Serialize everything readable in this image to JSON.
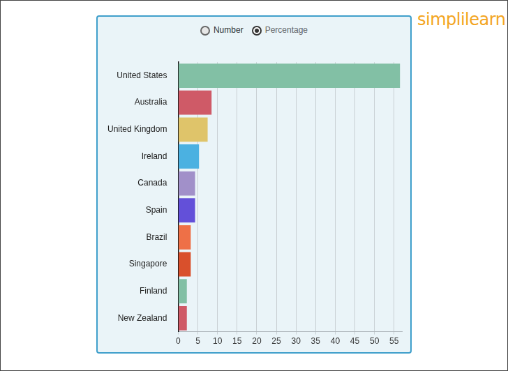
{
  "chart_data": {
    "type": "bar",
    "orientation": "horizontal",
    "annotations": [
      "Number",
      "Percentage",
      "simplilearn"
    ],
    "categories": [
      "United States",
      "Australia",
      "United Kingdom",
      "Ireland",
      "Canada",
      "Spain",
      "Brazil",
      "Singapore",
      "Finland",
      "New Zealand"
    ],
    "values": [
      56.5,
      8.5,
      7.5,
      5.3,
      4.3,
      4.3,
      3.2,
      3.2,
      2.2,
      2.2
    ],
    "colors": [
      "#82c0a5",
      "#cf5a67",
      "#dfc46a",
      "#4bb1e1",
      "#a190c9",
      "#6350d9",
      "#ee7047",
      "#d9502c",
      "#82c0a5",
      "#cf5a67"
    ],
    "xlim": [
      0,
      57
    ],
    "xticks": [
      0,
      5,
      10,
      15,
      20,
      25,
      30,
      35,
      40,
      45,
      50,
      55
    ],
    "grid": true
  }
}
